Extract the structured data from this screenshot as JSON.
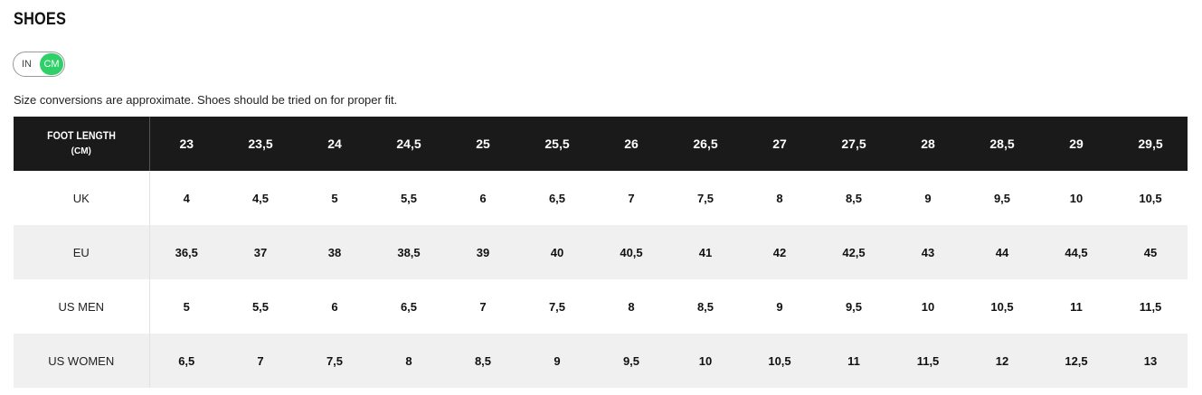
{
  "page": {
    "title": "SHOES",
    "disclaimer": "Size conversions are approximate. Shoes should be tried on for proper fit."
  },
  "unit_toggle": {
    "option_in": "IN",
    "option_cm": "CM",
    "selected": "CM",
    "active_color": "#2ed067"
  },
  "size_table": {
    "header_label": "FOOT LENGTH",
    "header_sublabel": "(CM)",
    "header_background": "#1a1a1a",
    "foot_lengths": [
      "23",
      "23,5",
      "24",
      "24,5",
      "25",
      "25,5",
      "26",
      "26,5",
      "27",
      "27,5",
      "28",
      "28,5",
      "29",
      "29,5"
    ],
    "rows": [
      {
        "label": "UK",
        "values": [
          "4",
          "4,5",
          "5",
          "5,5",
          "6",
          "6,5",
          "7",
          "7,5",
          "8",
          "8,5",
          "9",
          "9,5",
          "10",
          "10,5"
        ]
      },
      {
        "label": "EU",
        "values": [
          "36,5",
          "37",
          "38",
          "38,5",
          "39",
          "40",
          "40,5",
          "41",
          "42",
          "42,5",
          "43",
          "44",
          "44,5",
          "45"
        ]
      },
      {
        "label": "US MEN",
        "values": [
          "5",
          "5,5",
          "6",
          "6,5",
          "7",
          "7,5",
          "8",
          "8,5",
          "9",
          "9,5",
          "10",
          "10,5",
          "11",
          "11,5"
        ]
      },
      {
        "label": "US WOMEN",
        "values": [
          "6,5",
          "7",
          "7,5",
          "8",
          "8,5",
          "9",
          "9,5",
          "10",
          "10,5",
          "11",
          "11,5",
          "12",
          "12,5",
          "13"
        ]
      }
    ]
  }
}
